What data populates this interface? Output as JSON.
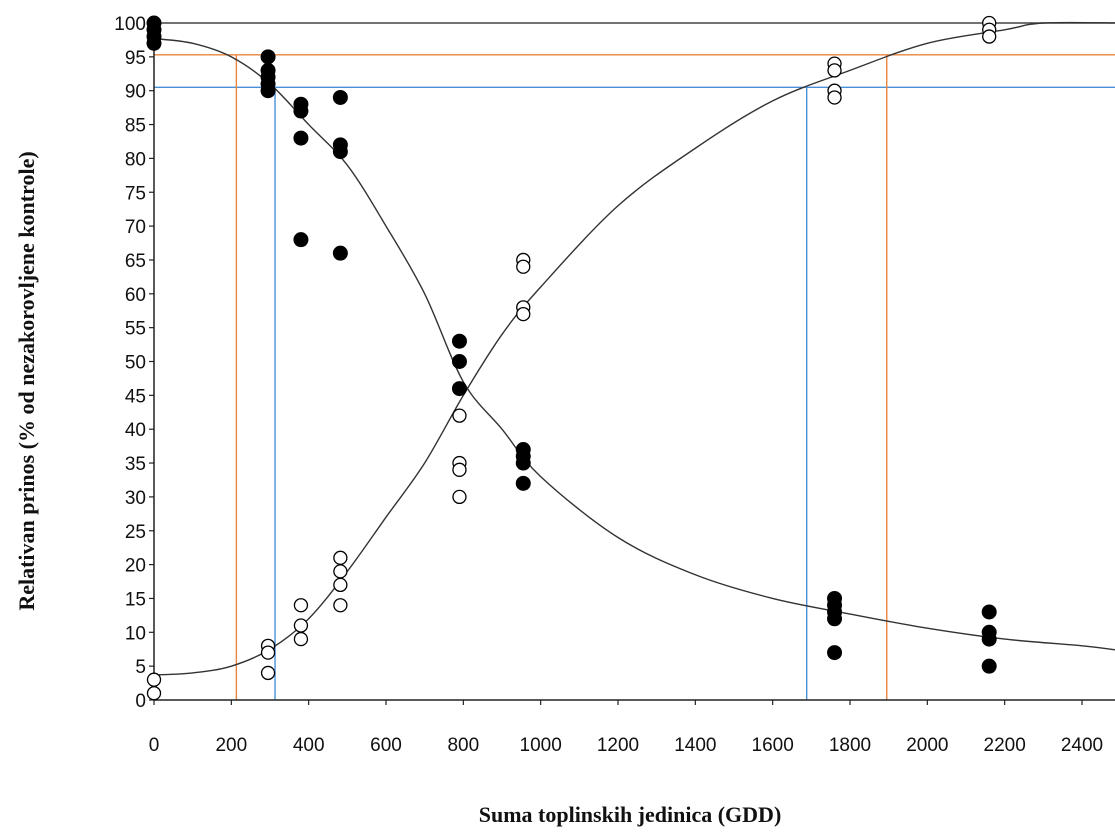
{
  "chart_data": {
    "type": "scatter",
    "title": "",
    "xlabel": "Suma toplinskih jedinica (GDD)",
    "ylabel": "Relativan prinos (% od nezakorovljene kontrole)",
    "xlim": [
      0,
      2500
    ],
    "ylim": [
      0,
      100
    ],
    "x_ticks": [
      0,
      200,
      400,
      600,
      800,
      1000,
      1200,
      1400,
      1600,
      1800,
      2000,
      2200,
      2400
    ],
    "y_ticks": [
      0,
      5,
      10,
      15,
      20,
      25,
      30,
      35,
      40,
      45,
      50,
      55,
      60,
      65,
      70,
      75,
      80,
      85,
      90,
      95,
      100
    ],
    "grid": false,
    "legend": "none",
    "series": [
      {
        "marker": "filled-circle",
        "color": "#000000",
        "points": [
          [
            0,
            100
          ],
          [
            0,
            99
          ],
          [
            0,
            98
          ],
          [
            0,
            97
          ],
          [
            295,
            95
          ],
          [
            295,
            93
          ],
          [
            295,
            92
          ],
          [
            295,
            91
          ],
          [
            295,
            90
          ],
          [
            380,
            88
          ],
          [
            380,
            87
          ],
          [
            380,
            83
          ],
          [
            380,
            68
          ],
          [
            482,
            89
          ],
          [
            482,
            82
          ],
          [
            482,
            81
          ],
          [
            482,
            66
          ],
          [
            790,
            53
          ],
          [
            790,
            50
          ],
          [
            790,
            46
          ],
          [
            955,
            37
          ],
          [
            955,
            36
          ],
          [
            955,
            35
          ],
          [
            955,
            32
          ],
          [
            1760,
            15
          ],
          [
            1760,
            14
          ],
          [
            1760,
            13
          ],
          [
            1760,
            12
          ],
          [
            1760,
            7
          ],
          [
            2160,
            13
          ],
          [
            2160,
            10
          ],
          [
            2160,
            9
          ],
          [
            2160,
            5
          ]
        ],
        "curve": [
          [
            0,
            97.7
          ],
          [
            100,
            97
          ],
          [
            200,
            95
          ],
          [
            300,
            91
          ],
          [
            400,
            85
          ],
          [
            500,
            79
          ],
          [
            600,
            70
          ],
          [
            700,
            60
          ],
          [
            800,
            47
          ],
          [
            900,
            40
          ],
          [
            1000,
            33
          ],
          [
            1200,
            24
          ],
          [
            1400,
            18.5
          ],
          [
            1600,
            15
          ],
          [
            1800,
            12.7
          ],
          [
            2000,
            10.6
          ],
          [
            2200,
            9
          ],
          [
            2400,
            8
          ],
          [
            2500,
            7.3
          ]
        ]
      },
      {
        "marker": "open-circle",
        "color": "#000000",
        "points": [
          [
            0,
            3
          ],
          [
            0,
            1
          ],
          [
            295,
            8
          ],
          [
            295,
            7
          ],
          [
            295,
            4
          ],
          [
            380,
            14
          ],
          [
            380,
            11
          ],
          [
            380,
            9
          ],
          [
            482,
            21
          ],
          [
            482,
            19
          ],
          [
            482,
            17
          ],
          [
            482,
            14
          ],
          [
            790,
            42
          ],
          [
            790,
            35
          ],
          [
            790,
            34
          ],
          [
            790,
            30
          ],
          [
            955,
            65
          ],
          [
            955,
            64
          ],
          [
            955,
            58
          ],
          [
            955,
            57
          ],
          [
            1760,
            94
          ],
          [
            1760,
            93
          ],
          [
            1760,
            90
          ],
          [
            1760,
            89
          ],
          [
            2160,
            100
          ],
          [
            2160,
            99
          ],
          [
            2160,
            98
          ]
        ],
        "curve": [
          [
            0,
            3.7
          ],
          [
            100,
            4
          ],
          [
            200,
            5
          ],
          [
            300,
            7.5
          ],
          [
            400,
            12
          ],
          [
            500,
            19
          ],
          [
            600,
            27
          ],
          [
            700,
            35
          ],
          [
            800,
            45
          ],
          [
            900,
            54
          ],
          [
            1000,
            61
          ],
          [
            1200,
            73
          ],
          [
            1400,
            81.5
          ],
          [
            1600,
            88.5
          ],
          [
            1800,
            93
          ],
          [
            2000,
            97
          ],
          [
            2200,
            99
          ],
          [
            2300,
            100
          ],
          [
            2500,
            100
          ]
        ]
      }
    ],
    "reference_lines": [
      {
        "orientation": "horizontal",
        "y": 100,
        "color": "#444444"
      },
      {
        "orientation": "horizontal",
        "y": 95.3,
        "color": "#e8853f"
      },
      {
        "orientation": "horizontal",
        "y": 90.5,
        "color": "#4a90d9"
      },
      {
        "orientation": "vertical",
        "x": 213,
        "y_top": 95.3,
        "color": "#e8853f"
      },
      {
        "orientation": "vertical",
        "x": 313,
        "y_top": 90.5,
        "color": "#4a90d9"
      },
      {
        "orientation": "vertical",
        "x": 1688,
        "y_top": 90.5,
        "color": "#4a90d9"
      },
      {
        "orientation": "vertical",
        "x": 1895,
        "y_top": 95.3,
        "color": "#e8853f"
      }
    ]
  }
}
